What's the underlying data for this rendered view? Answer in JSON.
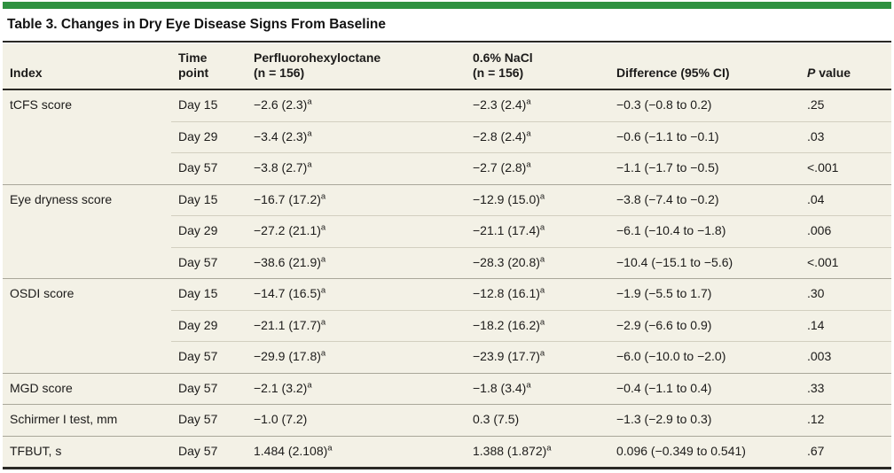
{
  "table": {
    "title": "Table 3. Changes in Dry Eye Disease Signs From Baseline",
    "columns": [
      {
        "id": "index",
        "lines": [
          "Index"
        ]
      },
      {
        "id": "time",
        "lines": [
          "Time",
          "point"
        ]
      },
      {
        "id": "drug",
        "lines": [
          "Perfluorohexyloctane",
          "(n = 156)"
        ]
      },
      {
        "id": "control",
        "lines": [
          "0.6% NaCl",
          "(n = 156)"
        ]
      },
      {
        "id": "difference",
        "lines": [
          "Difference (95% CI)"
        ]
      },
      {
        "id": "pvalue",
        "lines": [
          "P value"
        ],
        "italic_lead": true
      }
    ],
    "groups": [
      {
        "index": "tCFS score",
        "rows": [
          {
            "time": "Day 15",
            "drug": "−2.6 (2.3)",
            "drug_sup": "a",
            "control": "−2.3 (2.4)",
            "control_sup": "a",
            "difference": "−0.3 (−0.8 to 0.2)",
            "p": ".25"
          },
          {
            "time": "Day 29",
            "drug": "−3.4 (2.3)",
            "drug_sup": "a",
            "control": "−2.8 (2.4)",
            "control_sup": "a",
            "difference": "−0.6 (−1.1 to −0.1)",
            "p": ".03"
          },
          {
            "time": "Day 57",
            "drug": "−3.8 (2.7)",
            "drug_sup": "a",
            "control": "−2.7 (2.8)",
            "control_sup": "a",
            "difference": "−1.1 (−1.7 to −0.5)",
            "p": "<.001"
          }
        ]
      },
      {
        "index": "Eye dryness score",
        "rows": [
          {
            "time": "Day 15",
            "drug": "−16.7 (17.2)",
            "drug_sup": "a",
            "control": "−12.9 (15.0)",
            "control_sup": "a",
            "difference": "−3.8 (−7.4 to −0.2)",
            "p": ".04"
          },
          {
            "time": "Day 29",
            "drug": "−27.2 (21.1)",
            "drug_sup": "a",
            "control": "−21.1 (17.4)",
            "control_sup": "a",
            "difference": "−6.1 (−10.4 to −1.8)",
            "p": ".006"
          },
          {
            "time": "Day 57",
            "drug": "−38.6 (21.9)",
            "drug_sup": "a",
            "control": "−28.3 (20.8)",
            "control_sup": "a",
            "difference": "−10.4 (−15.1 to −5.6)",
            "p": "<.001"
          }
        ]
      },
      {
        "index": "OSDI score",
        "rows": [
          {
            "time": "Day 15",
            "drug": "−14.7 (16.5)",
            "drug_sup": "a",
            "control": "−12.8 (16.1)",
            "control_sup": "a",
            "difference": "−1.9 (−5.5 to 1.7)",
            "p": ".30"
          },
          {
            "time": "Day 29",
            "drug": "−21.1 (17.7)",
            "drug_sup": "a",
            "control": "−18.2 (16.2)",
            "control_sup": "a",
            "difference": "−2.9 (−6.6 to 0.9)",
            "p": ".14"
          },
          {
            "time": "Day 57",
            "drug": "−29.9 (17.8)",
            "drug_sup": "a",
            "control": "−23.9 (17.7)",
            "control_sup": "a",
            "difference": "−6.0 (−10.0 to −2.0)",
            "p": ".003"
          }
        ]
      },
      {
        "index": "MGD score",
        "rows": [
          {
            "time": "Day 57",
            "drug": "−2.1 (3.2)",
            "drug_sup": "a",
            "control": "−1.8 (3.4)",
            "control_sup": "a",
            "difference": "−0.4 (−1.1 to 0.4)",
            "p": ".33"
          }
        ]
      },
      {
        "index": "Schirmer I test, mm",
        "rows": [
          {
            "time": "Day 57",
            "drug": "−1.0 (7.2)",
            "drug_sup": "",
            "control": "0.3 (7.5)",
            "control_sup": "",
            "difference": "−1.3 (−2.9 to 0.3)",
            "p": ".12"
          }
        ]
      },
      {
        "index": "TFBUT, s",
        "rows": [
          {
            "time": "Day 57",
            "drug": "1.484 (2.108)",
            "drug_sup": "a",
            "control": "1.388 (1.872)",
            "control_sup": "a",
            "difference": "0.096 (−0.349 to 0.541)",
            "p": ".67"
          }
        ]
      }
    ],
    "colors": {
      "accent_bar": "#2f9140",
      "table_background": "#f3f1e6",
      "rule_dark": "#2a2925",
      "row_line": "#d2cfc0",
      "group_line": "#a9a79a",
      "text": "#1c1b1a"
    }
  }
}
